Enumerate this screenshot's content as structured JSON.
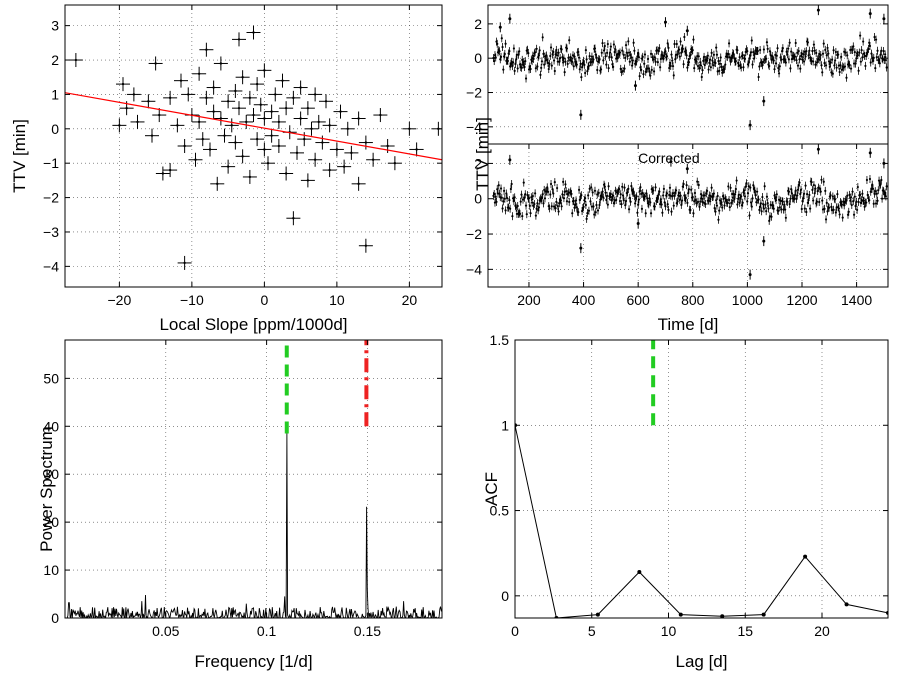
{
  "chart_data": [
    {
      "id": "ttv-vs-slope",
      "type": "scatter",
      "title": "",
      "xlabel": "Local Slope [ppm/1000d]",
      "ylabel": "TTV [min]",
      "xlim": [
        -27.5,
        24.5
      ],
      "ylim": [
        -4.6,
        3.6
      ],
      "xticks": [
        -20,
        -10,
        0,
        10,
        20
      ],
      "yticks": [
        -4,
        -3,
        -2,
        -1,
        0,
        1,
        2,
        3
      ],
      "grid": true,
      "series": [
        {
          "kind": "points-with-errorbars",
          "color": "#000000",
          "points": [
            [
              -26,
              2.0
            ],
            [
              -20,
              0.1
            ],
            [
              -19.5,
              1.3
            ],
            [
              -19,
              0.6
            ],
            [
              -18,
              1.0
            ],
            [
              -17.5,
              0.2
            ],
            [
              -16,
              0.8
            ],
            [
              -15,
              1.9
            ],
            [
              -15.5,
              -0.2
            ],
            [
              -14,
              -1.3
            ],
            [
              -14.5,
              0.4
            ],
            [
              -13,
              0.9
            ],
            [
              -13,
              -1.2
            ],
            [
              -12,
              0.1
            ],
            [
              -11.5,
              1.4
            ],
            [
              -11,
              -3.9
            ],
            [
              -11,
              -0.5
            ],
            [
              -10.5,
              1.0
            ],
            [
              -10,
              0.4
            ],
            [
              -9.5,
              -0.9
            ],
            [
              -9,
              1.6
            ],
            [
              -9,
              0.2
            ],
            [
              -8.5,
              -0.3
            ],
            [
              -8,
              0.9
            ],
            [
              -8,
              2.3
            ],
            [
              -7.5,
              -0.6
            ],
            [
              -7,
              0.5
            ],
            [
              -7,
              1.2
            ],
            [
              -6.5,
              -1.6
            ],
            [
              -6,
              0.3
            ],
            [
              -6,
              1.9
            ],
            [
              -5.5,
              -0.2
            ],
            [
              -5,
              0.8
            ],
            [
              -5,
              -1.1
            ],
            [
              -4.5,
              0.1
            ],
            [
              -4,
              1.1
            ],
            [
              -4,
              -0.4
            ],
            [
              -3.5,
              2.6
            ],
            [
              -3.5,
              0.6
            ],
            [
              -3,
              -0.8
            ],
            [
              -3,
              1.5
            ],
            [
              -2.5,
              0.2
            ],
            [
              -2,
              0.9
            ],
            [
              -2,
              -1.4
            ],
            [
              -1.5,
              2.8
            ],
            [
              -1.5,
              0.4
            ],
            [
              -1,
              -0.3
            ],
            [
              -1,
              1.3
            ],
            [
              -0.5,
              0.7
            ],
            [
              0,
              -0.6
            ],
            [
              0,
              0.3
            ],
            [
              0,
              1.7
            ],
            [
              0.5,
              -1.0
            ],
            [
              1,
              0.5
            ],
            [
              1,
              -0.2
            ],
            [
              1.5,
              1.0
            ],
            [
              2,
              -0.5
            ],
            [
              2,
              0.2
            ],
            [
              2.5,
              1.4
            ],
            [
              3,
              -1.3
            ],
            [
              3,
              0.6
            ],
            [
              3.5,
              -0.1
            ],
            [
              4,
              -2.6
            ],
            [
              4,
              0.9
            ],
            [
              4.5,
              -0.7
            ],
            [
              5,
              0.3
            ],
            [
              5,
              1.2
            ],
            [
              5.5,
              -0.3
            ],
            [
              6,
              -1.5
            ],
            [
              6,
              0.6
            ],
            [
              6.5,
              0.0
            ],
            [
              7,
              -0.9
            ],
            [
              7,
              1.0
            ],
            [
              7.5,
              0.2
            ],
            [
              8,
              -0.4
            ],
            [
              8.5,
              0.8
            ],
            [
              9,
              -1.2
            ],
            [
              9,
              0.1
            ],
            [
              10,
              -0.6
            ],
            [
              10.5,
              0.5
            ],
            [
              11,
              -1.1
            ],
            [
              11.5,
              0.0
            ],
            [
              12,
              -0.7
            ],
            [
              13,
              -1.6
            ],
            [
              13,
              0.3
            ],
            [
              14,
              -3.4
            ],
            [
              14,
              -0.4
            ],
            [
              15,
              -0.9
            ],
            [
              16,
              0.4
            ],
            [
              17,
              -0.5
            ],
            [
              18,
              -1.0
            ],
            [
              20,
              0.0
            ],
            [
              21,
              -0.6
            ],
            [
              24,
              0.0
            ]
          ]
        },
        {
          "name": "",
          "kind": "fit-line",
          "color": "#ff0000",
          "x": [
            -27.5,
            24.5
          ],
          "y": [
            1.05,
            -0.9
          ]
        }
      ]
    },
    {
      "id": "ttv-raw",
      "type": "scatter",
      "title": "",
      "xlabel": "",
      "ylabel": "TTV [min]",
      "xlim": [
        50,
        1515
      ],
      "ylim": [
        -5,
        3.1
      ],
      "xticks": [],
      "yticks": [
        -4,
        -2,
        0,
        2
      ],
      "grid": true,
      "series": [
        {
          "kind": "time-series-with-errorbars",
          "color": "#000000",
          "x_range": [
            70,
            1510
          ],
          "n_points": 520,
          "typical_range": [
            -1.0,
            1.0
          ],
          "outliers": [
            [
              95,
              1.8
            ],
            [
              130,
              2.3
            ],
            [
              390,
              -3.3
            ],
            [
              590,
              -1.6
            ],
            [
              1010,
              -3.9
            ],
            [
              1060,
              -2.5
            ],
            [
              1260,
              2.8
            ],
            [
              1450,
              2.6
            ],
            [
              1500,
              2.3
            ],
            [
              780,
              1.6
            ],
            [
              700,
              2.1
            ]
          ]
        }
      ]
    },
    {
      "id": "ttv-corrected",
      "type": "scatter",
      "title": "",
      "annotation": "Corrected",
      "xlabel": "Time [d]",
      "ylabel": "",
      "xlim": [
        50,
        1515
      ],
      "ylim": [
        -5,
        3.1
      ],
      "xticks": [
        200,
        400,
        600,
        800,
        1000,
        1200,
        1400
      ],
      "yticks": [
        -4,
        -2,
        0,
        2
      ],
      "grid": true,
      "series": [
        {
          "kind": "time-series-with-errorbars",
          "color": "#000000",
          "x_range": [
            70,
            1510
          ],
          "n_points": 520,
          "typical_range": [
            -1.0,
            1.0
          ],
          "outliers": [
            [
              130,
              2.2
            ],
            [
              390,
              -2.8
            ],
            [
              600,
              -1.4
            ],
            [
              1010,
              -4.3
            ],
            [
              1060,
              -2.4
            ],
            [
              1260,
              2.8
            ],
            [
              1450,
              2.6
            ],
            [
              1500,
              2.0
            ],
            [
              780,
              1.7
            ],
            [
              720,
              2.1
            ]
          ]
        }
      ]
    },
    {
      "id": "power-spectrum",
      "type": "line",
      "title": "",
      "xlabel": "Frequency [1/d]",
      "ylabel": "Power Spectrum",
      "xlim": [
        0,
        0.187
      ],
      "ylim": [
        0,
        58
      ],
      "xticks": [
        0.05,
        0.1,
        0.15
      ],
      "xticklabels": [
        "0.05",
        "0.1",
        "0.15"
      ],
      "yticks": [
        0,
        10,
        20,
        30,
        40,
        50
      ],
      "grid": true,
      "series": [
        {
          "kind": "spectrum",
          "color": "#000000",
          "noise_level": 1.5,
          "peaks": [
            [
              0.11,
              38.5
            ],
            [
              0.1495,
              23.2
            ],
            [
              0.04,
              4.8
            ],
            [
              0.038,
              3.5
            ],
            [
              0.002,
              3.2
            ],
            [
              0.09,
              3.0
            ],
            [
              0.15,
              6.0
            ],
            [
              0.168,
              3.5
            ],
            [
              0.109,
              4.5
            ]
          ]
        },
        {
          "kind": "vline",
          "color": "#22cc22",
          "style": "dashed",
          "x": 0.11,
          "y": [
            38.5,
            58
          ]
        },
        {
          "kind": "vline",
          "color": "#ee2222",
          "style": "dashdot",
          "x": 0.1495,
          "y": [
            40,
            58
          ]
        }
      ]
    },
    {
      "id": "acf",
      "type": "line",
      "title": "",
      "xlabel": "Lag [d]",
      "ylabel": "ACF",
      "xlim": [
        0,
        24.3
      ],
      "ylim": [
        -0.13,
        1.5
      ],
      "xticks": [
        0,
        5,
        10,
        15,
        20
      ],
      "yticks": [
        0,
        0.5,
        1,
        1.5
      ],
      "yticklabels": [
        "0",
        "0.5",
        "1",
        "1.5"
      ],
      "grid": true,
      "series": [
        {
          "kind": "line-markers",
          "color": "#000000",
          "x": [
            0,
            2.7,
            5.4,
            8.1,
            10.8,
            13.5,
            16.2,
            18.9,
            21.6,
            24.3
          ],
          "y": [
            1.0,
            -0.13,
            -0.11,
            0.14,
            -0.11,
            -0.12,
            -0.11,
            0.23,
            -0.05,
            -0.1
          ]
        },
        {
          "kind": "vline",
          "color": "#22cc22",
          "style": "dashed",
          "x": 9.0,
          "y": [
            1.0,
            1.5
          ]
        }
      ]
    }
  ]
}
